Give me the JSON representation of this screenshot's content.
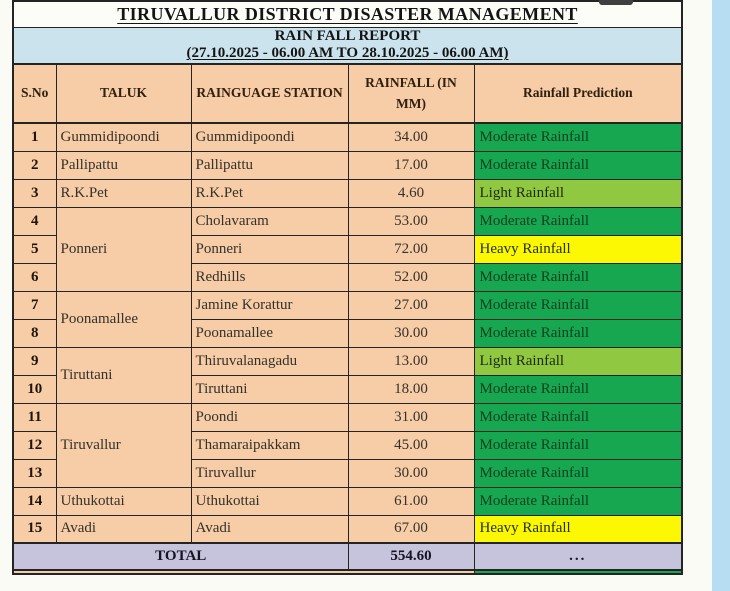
{
  "page": {
    "title": "TIRUVALLUR DISTRICT DISASTER MANAGEMENT",
    "report_name": "RAIN FALL REPORT",
    "report_period": "(27.10.2025 - 06.00 AM TO 28.10.2025 - 06.00 AM)"
  },
  "table": {
    "headers": [
      "S.No",
      "TALUK",
      "RAINGUAGE STATION",
      "RAINFALL (IN MM)",
      "Rainfall Prediction"
    ],
    "rows": [
      {
        "sno": "1",
        "taluk": "Gummidipoondi",
        "taluk_rowspan": 1,
        "station": "Gummidipoondi",
        "rainfall": "34.00",
        "prediction": "Moderate Rainfall",
        "prediction_type": "moderate"
      },
      {
        "sno": "2",
        "taluk": "Pallipattu",
        "taluk_rowspan": 1,
        "station": "Pallipattu",
        "rainfall": "17.00",
        "prediction": "Moderate Rainfall",
        "prediction_type": "moderate"
      },
      {
        "sno": "3",
        "taluk": "R.K.Pet",
        "taluk_rowspan": 1,
        "station": "R.K.Pet",
        "rainfall": "4.60",
        "prediction": "Light Rainfall",
        "prediction_type": "light"
      },
      {
        "sno": "4",
        "taluk": "Ponneri",
        "taluk_rowspan": 3,
        "station": "Cholavaram",
        "rainfall": "53.00",
        "prediction": "Moderate Rainfall",
        "prediction_type": "moderate"
      },
      {
        "sno": "5",
        "station": "Ponneri",
        "rainfall": "72.00",
        "prediction": "Heavy Rainfall",
        "prediction_type": "heavy"
      },
      {
        "sno": "6",
        "station": "Redhills",
        "rainfall": "52.00",
        "prediction": "Moderate Rainfall",
        "prediction_type": "moderate"
      },
      {
        "sno": "7",
        "taluk": "Poonamallee",
        "taluk_rowspan": 2,
        "station": "Jamine Korattur",
        "rainfall": "27.00",
        "prediction": "Moderate Rainfall",
        "prediction_type": "moderate"
      },
      {
        "sno": "8",
        "station": "Poonamallee",
        "rainfall": "30.00",
        "prediction": "Moderate Rainfall",
        "prediction_type": "moderate"
      },
      {
        "sno": "9",
        "taluk": "Tiruttani",
        "taluk_rowspan": 2,
        "station": "Thiruvalanagadu",
        "rainfall": "13.00",
        "prediction": "Light Rainfall",
        "prediction_type": "light"
      },
      {
        "sno": "10",
        "station": "Tiruttani",
        "rainfall": "18.00",
        "prediction": "Moderate Rainfall",
        "prediction_type": "moderate"
      },
      {
        "sno": "11",
        "taluk": "Tiruvallur",
        "taluk_rowspan": 3,
        "station": "Poondi",
        "rainfall": "31.00",
        "prediction": "Moderate Rainfall",
        "prediction_type": "moderate"
      },
      {
        "sno": "12",
        "station": "Thamaraipakkam",
        "rainfall": "45.00",
        "prediction": "Moderate Rainfall",
        "prediction_type": "moderate"
      },
      {
        "sno": "13",
        "station": "Tiruvallur",
        "rainfall": "30.00",
        "prediction": "Moderate Rainfall",
        "prediction_type": "moderate"
      },
      {
        "sno": "14",
        "taluk": "Uthukottai",
        "taluk_rowspan": 1,
        "station": "Uthukottai",
        "rainfall": "61.00",
        "prediction": "Moderate Rainfall",
        "prediction_type": "moderate"
      },
      {
        "sno": "15",
        "taluk": "Avadi",
        "taluk_rowspan": 1,
        "station": "Avadi",
        "rainfall": "67.00",
        "prediction": "Heavy Rainfall",
        "prediction_type": "heavy"
      }
    ],
    "total": {
      "label": "TOTAL",
      "rainfall": "554.60",
      "prediction": "..."
    }
  },
  "colors": {
    "theme": {
      "page-bg": "#fbfbf5",
      "title-bg": "#fdfdf8",
      "peach": "#f6cda6",
      "band-blue": "#cbe3ec",
      "total-lavender": "#c6c3dc",
      "right-strip": "#b7ddf3",
      "border": "#242424",
      "title-text": "#141414",
      "header-text": "#31200f",
      "cell-text": "#35312b",
      "moderate-text": "#11401f",
      "pred-moderate": "#18a751"
    },
    "prediction": {
      "moderate": "#18a751",
      "light": "#90c842",
      "heavy": "#fcf803"
    }
  }
}
